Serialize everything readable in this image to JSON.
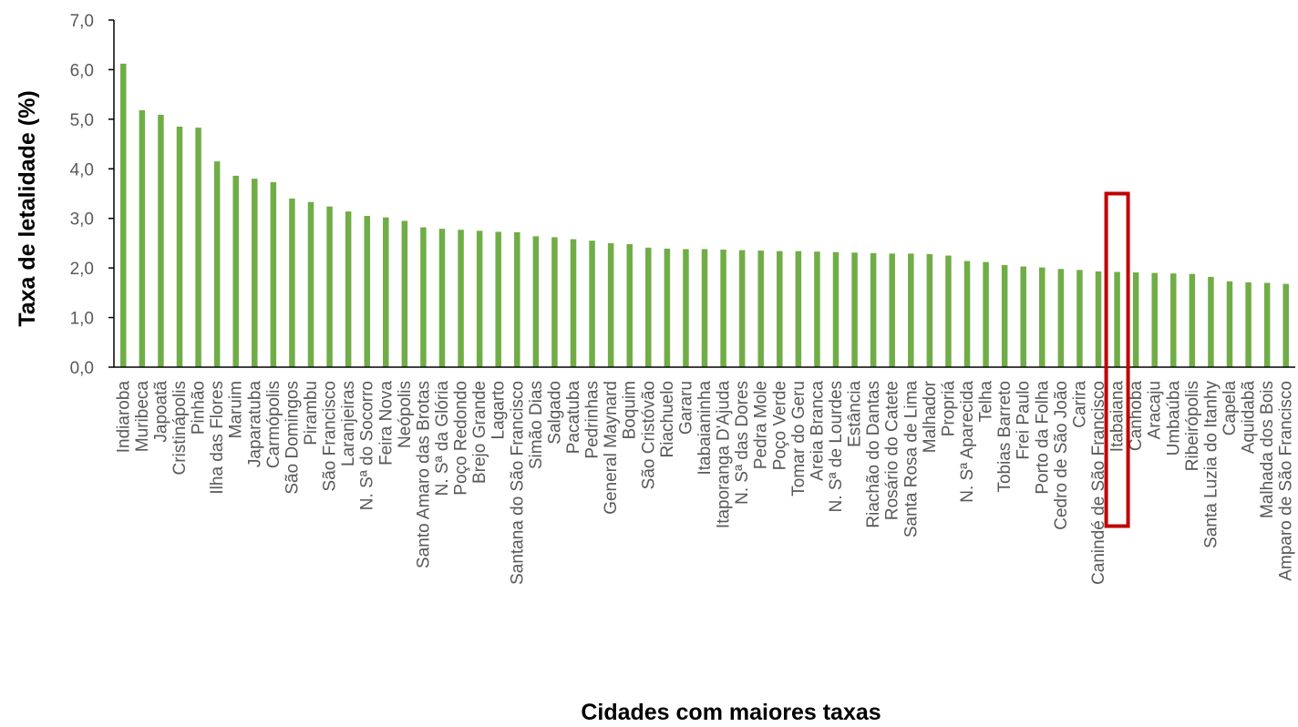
{
  "chart_data": {
    "type": "bar",
    "xlabel": "Cidades com maiores taxas",
    "ylabel": "Taxa de letalidade (%)",
    "ylim": [
      0,
      7
    ],
    "yticks": [
      "0,0",
      "1,0",
      "2,0",
      "3,0",
      "4,0",
      "5,0",
      "6,0",
      "7,0"
    ],
    "grid": false,
    "bar_color": "#70ad47",
    "highlight_color": "#c00000",
    "highlight_category": "Itabaiana",
    "highlight_range": [
      0,
      3.5
    ],
    "categories": [
      "Indiaroba",
      "Muribeca",
      "Japoatã",
      "Cristinápolis",
      "Pinhão",
      "Ilha das Flores",
      "Maruim",
      "Japaratuba",
      "Carmópolis",
      "São Domingos",
      "Pirambu",
      "São Francisco",
      "Laranjeiras",
      "N. Sª do Socorro",
      "Feira Nova",
      "Neópolis",
      "Santo Amaro das Brotas",
      "N. Sª da Glória",
      "Poço Redondo",
      "Brejo Grande",
      "Lagarto",
      "Santana do São Francisco",
      "Simão Dias",
      "Salgado",
      "Pacatuba",
      "Pedrinhas",
      "General Maynard",
      "Boquim",
      "São Cristóvão",
      "Riachuelo",
      "Gararu",
      "Itabaianinha",
      "Itaporanga D'Ajuda",
      "N. Sª das Dores",
      "Pedra Mole",
      "Poço Verde",
      "Tomar do Geru",
      "Areia Branca",
      "N. Sª de Lourdes",
      "Estância",
      "Riachão do Dantas",
      "Rosário do Catete",
      "Santa Rosa de Lima",
      "Malhador",
      "Propriá",
      "N. Sª Aparecida",
      "Telha",
      "Tobias Barreto",
      "Frei Paulo",
      "Porto da Folha",
      "Cedro de São João",
      "Carira",
      "Canindé de São Francisco",
      "Itabaiana",
      "Canhoba",
      "Aracaju",
      "Umbaúba",
      "Ribeirópolis",
      "Santa Luzia do Itanhy",
      "Capela",
      "Aquidabã",
      "Malhada dos Bois",
      "Amparo de São Francisco"
    ],
    "values": [
      6.12,
      5.18,
      5.09,
      4.85,
      4.83,
      4.15,
      3.86,
      3.8,
      3.73,
      3.4,
      3.33,
      3.24,
      3.14,
      3.05,
      3.02,
      2.95,
      2.82,
      2.79,
      2.77,
      2.75,
      2.73,
      2.72,
      2.64,
      2.62,
      2.58,
      2.55,
      2.5,
      2.48,
      2.41,
      2.39,
      2.38,
      2.38,
      2.37,
      2.36,
      2.35,
      2.34,
      2.34,
      2.33,
      2.32,
      2.31,
      2.3,
      2.29,
      2.29,
      2.28,
      2.25,
      2.14,
      2.12,
      2.06,
      2.03,
      2.01,
      1.98,
      1.96,
      1.93,
      1.92,
      1.91,
      1.9,
      1.89,
      1.88,
      1.82,
      1.73,
      1.71,
      1.7,
      1.68
    ]
  }
}
